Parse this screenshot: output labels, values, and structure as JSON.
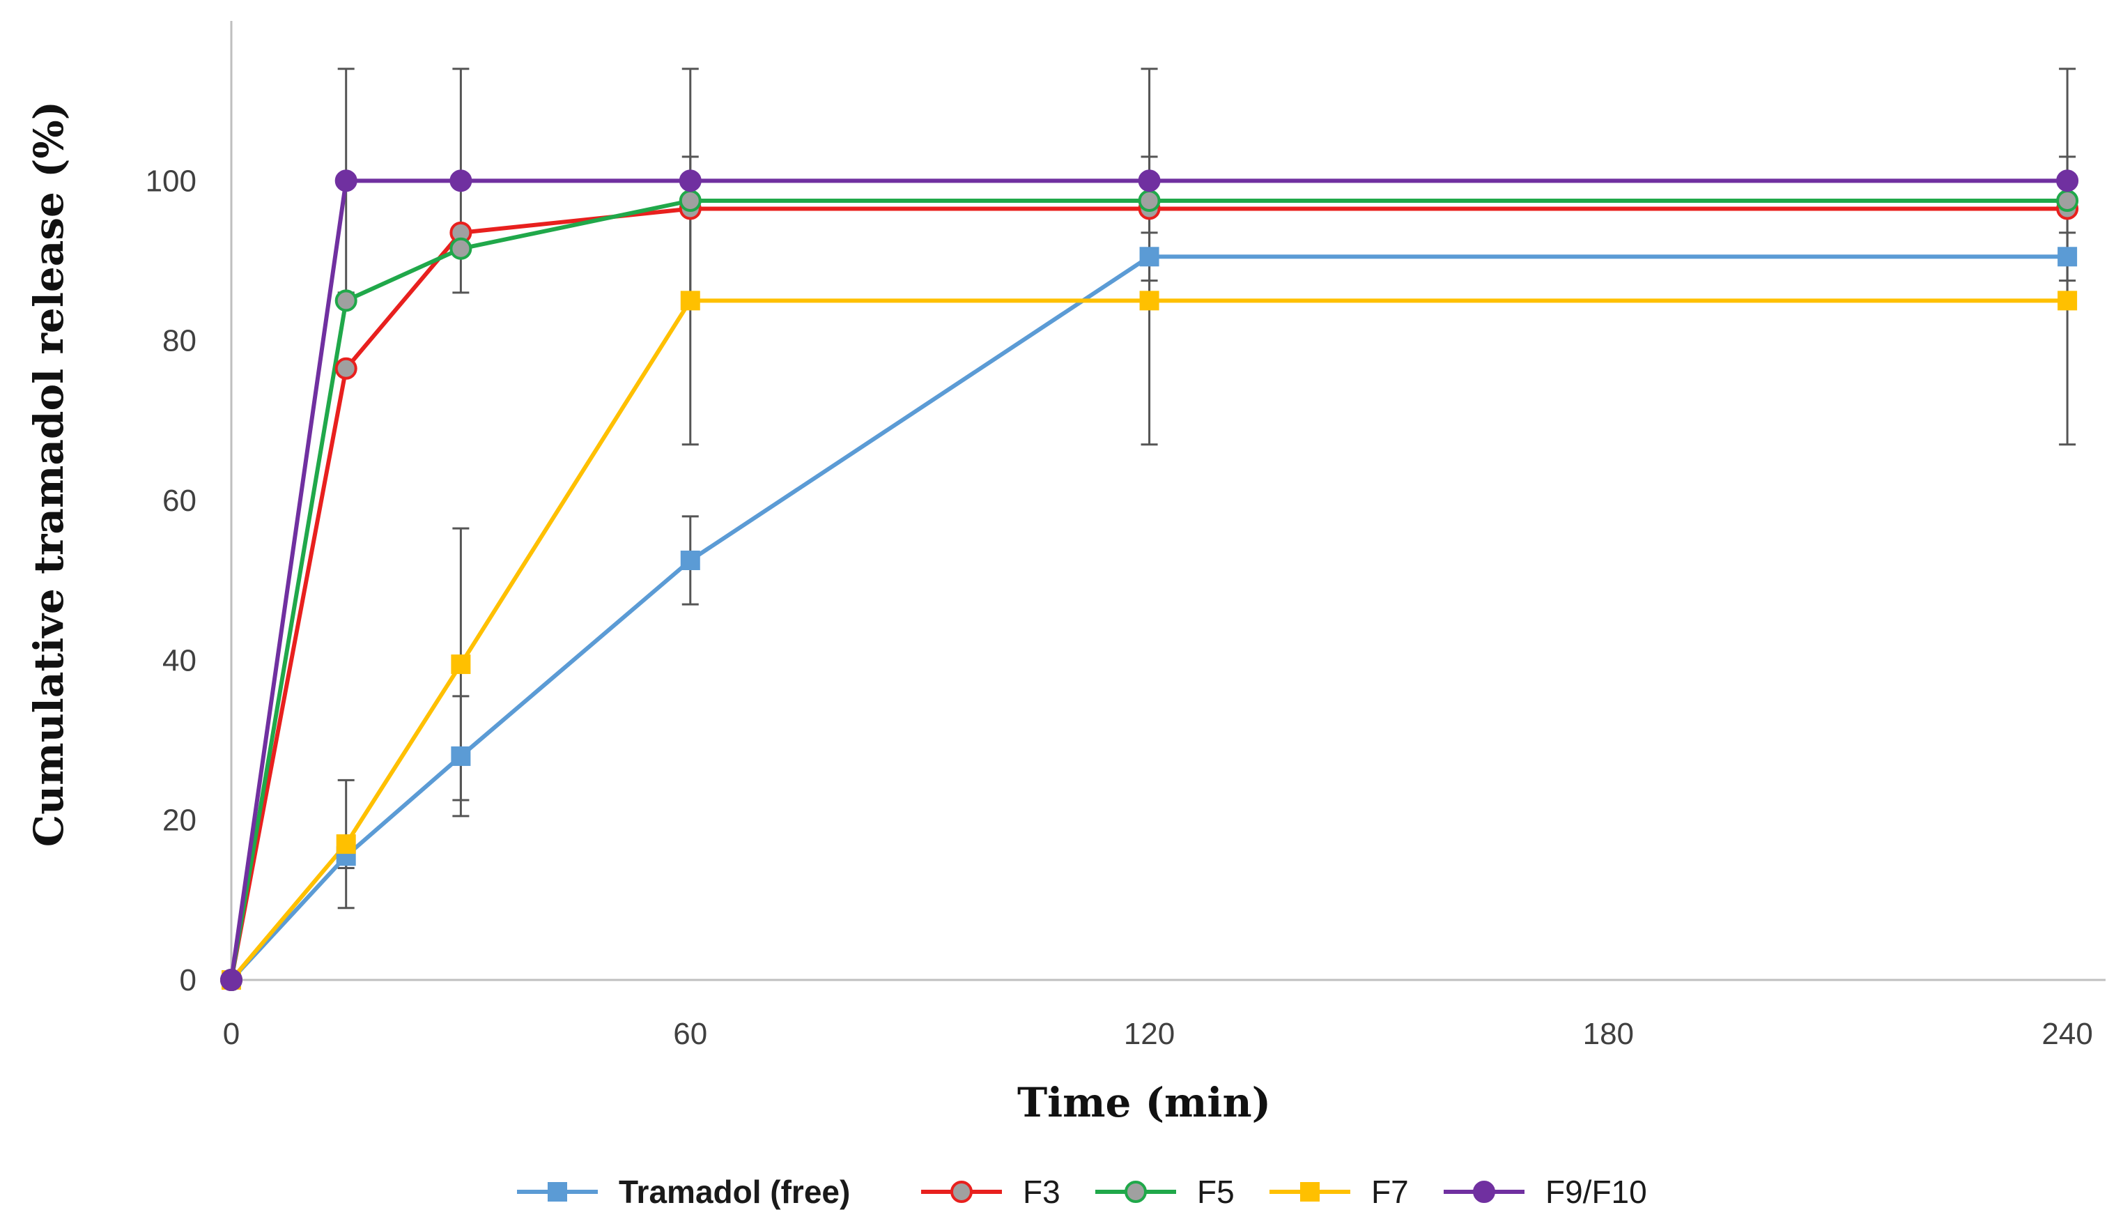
{
  "chart_data": {
    "type": "line",
    "title": "",
    "xlabel": "Time (min)",
    "ylabel": "Cumulative tramadol release (%)",
    "xlim": [
      0,
      245
    ],
    "ylim": [
      0,
      120
    ],
    "x_ticks": [
      0,
      60,
      120,
      180,
      240
    ],
    "y_ticks": [
      0,
      20,
      40,
      60,
      80,
      100
    ],
    "x": [
      0,
      15,
      30,
      60,
      120,
      240
    ],
    "error_bar_color": "#555555",
    "series": [
      {
        "name": "Tramadol (free)",
        "color": "#5b9bd5",
        "marker": "square",
        "values": [
          0,
          15.5,
          28,
          52.5,
          90.5,
          90.5
        ],
        "errors": [
          0,
          1.5,
          7.5,
          5.5,
          3.0,
          3.0
        ]
      },
      {
        "name": "F3",
        "color": "#e8201e",
        "marker": "circle",
        "values": [
          0,
          76.5,
          93.5,
          96.5,
          96.5,
          96.5
        ],
        "errors": [
          0,
          0,
          0,
          0,
          0,
          0
        ]
      },
      {
        "name": "F5",
        "color": "#20a84a",
        "marker": "circle",
        "values": [
          0,
          85.0,
          91.5,
          97.5,
          97.5,
          97.5
        ],
        "errors": [
          0,
          0,
          0,
          0,
          0,
          0
        ]
      },
      {
        "name": "F7",
        "color": "#ffc000",
        "marker": "square",
        "values": [
          0,
          17.0,
          39.5,
          85.0,
          85.0,
          85.0
        ],
        "errors": [
          0,
          8.0,
          17.0,
          18.0,
          18.0,
          18.0
        ]
      },
      {
        "name": "F9/F10",
        "color": "#7030a0",
        "marker": "circle",
        "values": [
          0,
          100,
          100,
          100,
          100,
          100
        ],
        "errors": [
          0,
          14.0,
          14.0,
          14.0,
          14.0,
          14.0
        ]
      }
    ],
    "legend_position": "bottom-center"
  }
}
